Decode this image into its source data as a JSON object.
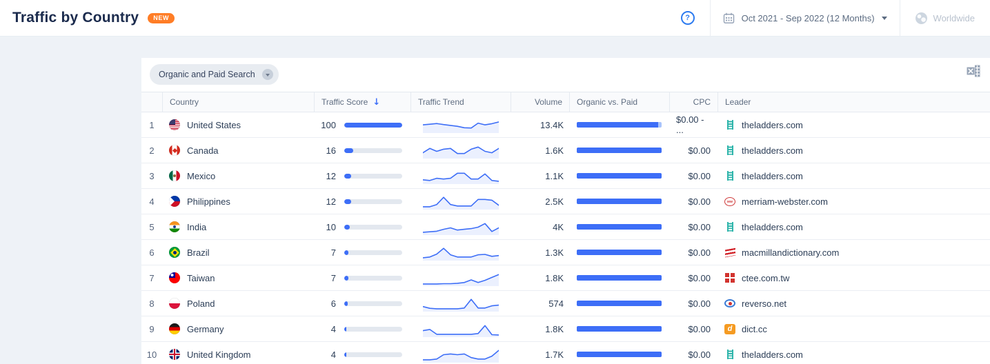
{
  "header": {
    "title": "Traffic by Country",
    "badge": "NEW",
    "date_range": "Oct 2021 - Sep 2022 (12 Months)",
    "region": "Worldwide"
  },
  "toolbar": {
    "filter_label": "Organic and Paid Search"
  },
  "table": {
    "columns": [
      "Country",
      "Traffic Score",
      "Traffic Trend",
      "Volume",
      "Organic vs. Paid",
      "CPC",
      "Leader"
    ],
    "sort": {
      "column": "Traffic Score",
      "direction": "desc"
    },
    "rows": [
      {
        "rank": 1,
        "country": "United States",
        "flag": "us",
        "score": 100,
        "volume": "13.4K",
        "organic_pct": 96,
        "cpc": "$0.00 - ...",
        "leader": "theladders.com",
        "favicon": "ladders",
        "trend": [
          5.2,
          5.6,
          6.1,
          5.4,
          4.8,
          4.2,
          3.2,
          3.0,
          6.4,
          5.2,
          6.0,
          7.2
        ]
      },
      {
        "rank": 2,
        "country": "Canada",
        "flag": "ca",
        "score": 16,
        "volume": "1.6K",
        "organic_pct": 100,
        "cpc": "$0.00",
        "leader": "theladders.com",
        "favicon": "ladders",
        "trend": [
          3.5,
          6.5,
          4.5,
          6.0,
          6.5,
          3.0,
          3.0,
          6.0,
          7.5,
          4.5,
          3.5,
          6.5
        ]
      },
      {
        "rank": 3,
        "country": "Mexico",
        "flag": "mx",
        "score": 12,
        "volume": "1.1K",
        "organic_pct": 100,
        "cpc": "$0.00",
        "leader": "theladders.com",
        "favicon": "ladders",
        "trend": [
          2.5,
          2.0,
          3.5,
          3.0,
          3.5,
          7.0,
          7.0,
          3.0,
          3.0,
          6.5,
          2.0,
          1.5
        ]
      },
      {
        "rank": 4,
        "country": "Philippines",
        "flag": "ph",
        "score": 12,
        "volume": "2.5K",
        "organic_pct": 100,
        "cpc": "$0.00",
        "leader": "merriam-webster.com",
        "favicon": "merriam",
        "trend": [
          1.5,
          1.5,
          3.0,
          8.0,
          3.0,
          2.0,
          2.0,
          2.0,
          6.5,
          6.5,
          6.0,
          2.5
        ]
      },
      {
        "rank": 5,
        "country": "India",
        "flag": "in",
        "score": 10,
        "volume": "4K",
        "organic_pct": 100,
        "cpc": "$0.00",
        "leader": "theladders.com",
        "favicon": "ladders",
        "trend": [
          1.5,
          1.8,
          2.2,
          3.5,
          4.5,
          3.0,
          3.5,
          4.0,
          5.0,
          7.5,
          2.0,
          4.5
        ]
      },
      {
        "rank": 6,
        "country": "Brazil",
        "flag": "br",
        "score": 7,
        "volume": "1.3K",
        "organic_pct": 100,
        "cpc": "$0.00",
        "leader": "macmillandictionary.com",
        "favicon": "macmillan",
        "trend": [
          1.5,
          2.0,
          4.0,
          8.0,
          3.5,
          2.0,
          2.0,
          2.0,
          3.5,
          3.8,
          2.5,
          3.0
        ]
      },
      {
        "rank": 7,
        "country": "Taiwan",
        "flag": "tw",
        "score": 7,
        "volume": "1.8K",
        "organic_pct": 100,
        "cpc": "$0.00",
        "leader": "ctee.com.tw",
        "favicon": "ctee",
        "trend": [
          1.0,
          1.0,
          1.0,
          1.2,
          1.2,
          1.5,
          2.0,
          3.8,
          2.0,
          3.5,
          5.5,
          7.5
        ]
      },
      {
        "rank": 8,
        "country": "Poland",
        "flag": "pl",
        "score": 6,
        "volume": "574",
        "organic_pct": 100,
        "cpc": "$0.00",
        "leader": "reverso.net",
        "favicon": "reverso",
        "trend": [
          3.0,
          1.8,
          1.5,
          1.5,
          1.5,
          1.5,
          2.0,
          8.0,
          2.0,
          2.0,
          3.5,
          4.0
        ]
      },
      {
        "rank": 9,
        "country": "Germany",
        "flag": "de",
        "score": 4,
        "volume": "1.8K",
        "organic_pct": 100,
        "cpc": "$0.00",
        "leader": "dict.cc",
        "favicon": "dict",
        "trend": [
          4.0,
          4.8,
          1.5,
          1.5,
          1.5,
          1.5,
          1.5,
          1.5,
          2.0,
          7.5,
          1.2,
          1.0
        ]
      },
      {
        "rank": 10,
        "country": "United Kingdom",
        "flag": "gb",
        "score": 4,
        "volume": "1.7K",
        "organic_pct": 100,
        "cpc": "$0.00",
        "leader": "theladders.com",
        "favicon": "ladders",
        "trend": [
          1.5,
          1.5,
          2.0,
          5.0,
          5.5,
          5.0,
          5.5,
          3.0,
          2.0,
          2.0,
          4.0,
          8.0
        ]
      }
    ]
  },
  "colors": {
    "accent_blue": "#3d6ef7",
    "paid_light_blue": "#a9c4fb",
    "badge_orange": "#ff7d26",
    "title_navy": "#1b2b4d",
    "ladder_teal": "#2fb5ab",
    "dict_orange": "#f59b22",
    "stamp_red": "#d2342f",
    "page_bg": "#eef2f7"
  }
}
